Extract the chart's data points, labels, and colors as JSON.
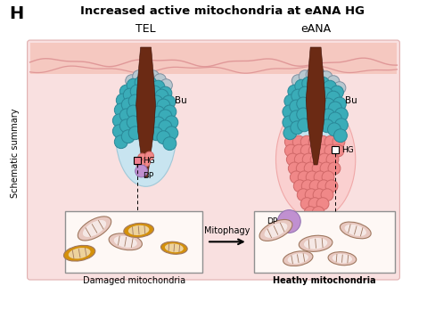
{
  "title": "Increased active mitochondria at eANA HG",
  "fig_label": "H",
  "tel_label": "TEL",
  "eana_label": "eANA",
  "bu_label": "Bu",
  "hg_label": "HG",
  "dp_label": "DP",
  "mitophagy_label": "Mitophagy",
  "damaged_label": "Damaged mitochondria",
  "healthy_label": "Heathy mitochondria",
  "schematic_label": "Schematic summary",
  "skin_color": "#f9e0e0",
  "hair_color": "#6b2a14",
  "teal_color": "#3aacb8",
  "teal_edge": "#2a8898",
  "gray_color": "#b8c8d0",
  "gray_edge": "#8090a0",
  "pink_color": "#f08888",
  "pink_edge": "#d06868",
  "purple_color": "#c090d0",
  "purple_edge": "#9070b0",
  "light_blue_fill": "#c8e4f0",
  "light_blue_edge": "#a0c8d8",
  "pink_fill": "#fad0d0",
  "pink_fill_edge": "#f0a8a8",
  "white_bg": "#ffffff",
  "damaged_mito_color": "#d4900a",
  "healthy_mito_color": "#e8c8c0",
  "box_bg": "#fef8f5"
}
